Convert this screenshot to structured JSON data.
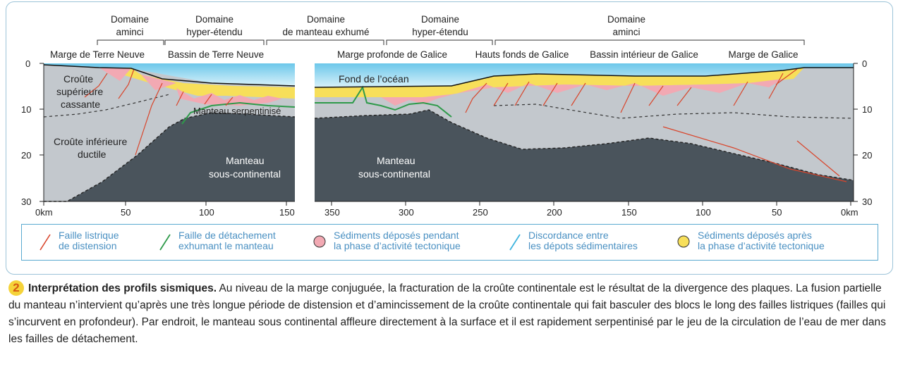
{
  "domains": [
    {
      "id": "aminci-left",
      "line1": "Domaine",
      "line2": "aminci"
    },
    {
      "id": "hyper-left",
      "line1": "Domaine",
      "line2": "hyper-étendu"
    },
    {
      "id": "manteau-exhume",
      "line1": "Domaine",
      "line2": "de manteau exhumé"
    },
    {
      "id": "hyper-right",
      "line1": "Domaine",
      "line2": "hyper-étendu"
    },
    {
      "id": "aminci-right",
      "line1": "Domaine",
      "line2": "aminci"
    }
  ],
  "regions": [
    "Marge de Terre Neuve",
    "Bassin de Terre Neuve",
    "Marge profonde de Galice",
    "Hauts fonds de Galice",
    "Bassin intérieur de Galice",
    "Marge de Galice"
  ],
  "labels": {
    "croute_sup_1": "Croûte",
    "croute_sup_2": "supérieure",
    "croute_sup_3": "cassante",
    "croute_inf_1": "Croûte inférieure",
    "croute_inf_2": "ductile",
    "manteau_serp": "Manteau serpentinisé",
    "manteau_left_1": "Manteau",
    "manteau_left_2": "sous-continental",
    "manteau_right_1": "Manteau",
    "manteau_right_2": "sous-continental",
    "fond_ocean": "Fond de l’océan"
  },
  "depth_ticks": [
    "0",
    "10",
    "20",
    "30"
  ],
  "x_ticks_left": [
    "0km",
    "50",
    "100",
    "150"
  ],
  "x_ticks_right": [
    "350",
    "300",
    "250",
    "200",
    "150",
    "100",
    "50",
    "0km"
  ],
  "legend": [
    {
      "line1": "Faille listrique",
      "line2": "de distension",
      "color": "#d9452b",
      "icon": "red-fault-line-icon"
    },
    {
      "line1": "Faille de détachement",
      "line2": "exhumant le manteau",
      "color": "#2e9a4a",
      "icon": "green-detachment-line-icon"
    },
    {
      "line1": "Sédiments déposés pendant",
      "line2": "la phase d’activité tectonique",
      "color": "#f2a9b3",
      "icon": "pink-circle-icon"
    },
    {
      "line1": "Discordance entre",
      "line2": "les dépots sédimentaires",
      "color": "#3fb4de",
      "icon": "blue-line-icon"
    },
    {
      "line1": "Sédiments déposés après",
      "line2": "la phase d’activité tectonique",
      "color": "#f7df5a",
      "icon": "yellow-circle-icon"
    }
  ],
  "caption": {
    "number": "2",
    "title": "Interprétation des profils sismiques.",
    "text": " Au niveau de la marge conjuguée, la fracturation de la croûte continentale est le résultat de la divergence des plaques. La fusion partielle du manteau n’intervient qu’après une très longue période de distension et d’amincissement de la croûte continentale qui fait basculer des blocs le long des failles listriques (failles qui s’incurvent en profondeur). Par endroit, le manteau sous continental affleure directement à la surface et il est rapidement serpentinisé par le jeu de la circulation de l’eau de mer dans les failles de détachement."
  },
  "colors": {
    "ocean": "#8dd3ee",
    "crust": "#c3c8cd",
    "mantle": "#4a545c",
    "syn_rift": "#f2a9b3",
    "post_rift": "#f7df5a",
    "fault": "#d9452b",
    "detachment": "#2e9a4a",
    "frame": "#9cc3d8"
  }
}
